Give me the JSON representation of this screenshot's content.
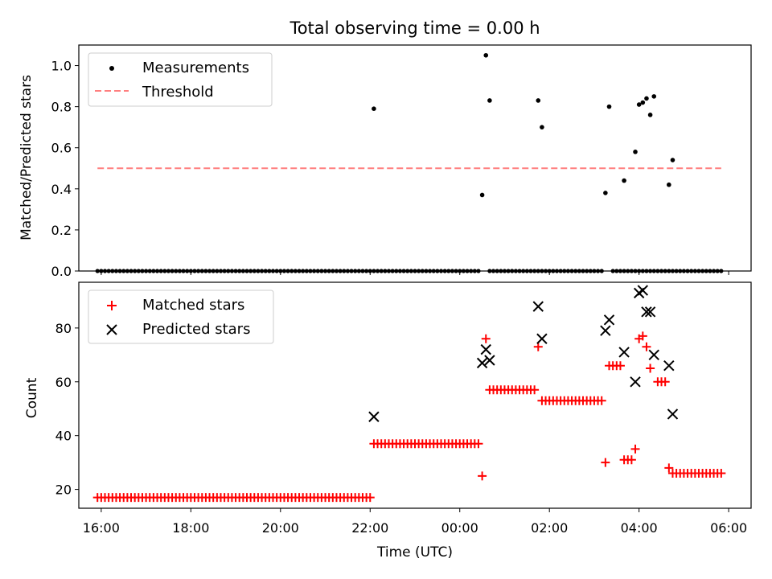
{
  "chart_data": [
    {
      "type": "scatter",
      "title": "Total observing time = 0.00 h",
      "xlabel": "",
      "ylabel": "Matched/Predicted stars",
      "xlim": [
        "15:30",
        "06:30"
      ],
      "ylim": [
        0,
        1.1
      ],
      "yticks": [
        "0.0",
        "0.2",
        "0.4",
        "0.6",
        "0.8",
        "1.0"
      ],
      "legend": {
        "position": "top-left",
        "entries": [
          "Measurements",
          "Threshold"
        ]
      },
      "threshold": {
        "value": 0.5,
        "x_start": "15:55",
        "x_end": "05:50",
        "color": "#ff7f7f"
      },
      "series": [
        {
          "name": "Measurements",
          "color": "#000000",
          "points": [
            [
              "22:05",
              0.79
            ],
            [
              "00:30",
              0.37
            ],
            [
              "00:35",
              1.05
            ],
            [
              "00:40",
              0.83
            ],
            [
              "01:45",
              0.83
            ],
            [
              "01:50",
              0.7
            ],
            [
              "03:15",
              0.38
            ],
            [
              "03:20",
              0.8
            ],
            [
              "03:40",
              0.44
            ],
            [
              "03:55",
              0.58
            ],
            [
              "04:00",
              0.81
            ],
            [
              "04:05",
              0.82
            ],
            [
              "04:10",
              0.84
            ],
            [
              "04:15",
              0.76
            ],
            [
              "04:20",
              0.85
            ],
            [
              "04:40",
              0.42
            ],
            [
              "04:45",
              0.54
            ]
          ],
          "zero_runs": [
            [
              "15:55",
              "22:00"
            ],
            [
              "22:05",
              "00:25"
            ],
            [
              "00:40",
              "03:10"
            ],
            [
              "03:25",
              "04:30"
            ],
            [
              "04:35",
              "05:50"
            ]
          ]
        }
      ]
    },
    {
      "type": "scatter",
      "title": "",
      "xlabel": "Time (UTC)",
      "ylabel": "Count",
      "xlim": [
        "15:30",
        "06:30"
      ],
      "ylim": [
        13,
        97
      ],
      "xticks": [
        "16:00",
        "18:00",
        "20:00",
        "22:00",
        "00:00",
        "02:00",
        "04:00",
        "06:00"
      ],
      "yticks": [
        "20",
        "40",
        "60",
        "80"
      ],
      "legend": {
        "position": "top-left",
        "entries": [
          "Matched stars",
          "Predicted stars"
        ]
      },
      "series": [
        {
          "name": "Matched stars",
          "marker": "plus",
          "color": "#ff0000",
          "runs": [
            {
              "from": "15:55",
              "to": "22:00",
              "value": 17
            },
            {
              "from": "22:05",
              "to": "00:25",
              "value": 37
            },
            {
              "from": "00:40",
              "to": "01:40",
              "value": 57
            },
            {
              "from": "01:50",
              "to": "03:10",
              "value": 53
            },
            {
              "from": "03:20",
              "to": "03:35",
              "value": 66
            },
            {
              "from": "03:40",
              "to": "03:50",
              "value": 31
            },
            {
              "from": "04:25",
              "to": "04:35",
              "value": 60
            },
            {
              "from": "04:45",
              "to": "05:50",
              "value": 26
            }
          ],
          "points": [
            [
              "00:30",
              25
            ],
            [
              "00:35",
              76
            ],
            [
              "01:45",
              73
            ],
            [
              "03:15",
              30
            ],
            [
              "03:55",
              35
            ],
            [
              "04:00",
              76
            ],
            [
              "04:05",
              77
            ],
            [
              "04:10",
              73
            ],
            [
              "04:15",
              65
            ],
            [
              "04:40",
              28
            ]
          ]
        },
        {
          "name": "Predicted stars",
          "marker": "x",
          "color": "#000000",
          "points": [
            [
              "22:05",
              47
            ],
            [
              "00:30",
              67
            ],
            [
              "00:35",
              72
            ],
            [
              "00:40",
              68
            ],
            [
              "01:45",
              88
            ],
            [
              "01:50",
              76
            ],
            [
              "03:15",
              79
            ],
            [
              "03:20",
              83
            ],
            [
              "03:40",
              71
            ],
            [
              "03:55",
              60
            ],
            [
              "04:00",
              93
            ],
            [
              "04:05",
              94
            ],
            [
              "04:10",
              86
            ],
            [
              "04:15",
              86
            ],
            [
              "04:20",
              70
            ],
            [
              "04:40",
              66
            ],
            [
              "04:45",
              48
            ]
          ]
        }
      ]
    }
  ]
}
